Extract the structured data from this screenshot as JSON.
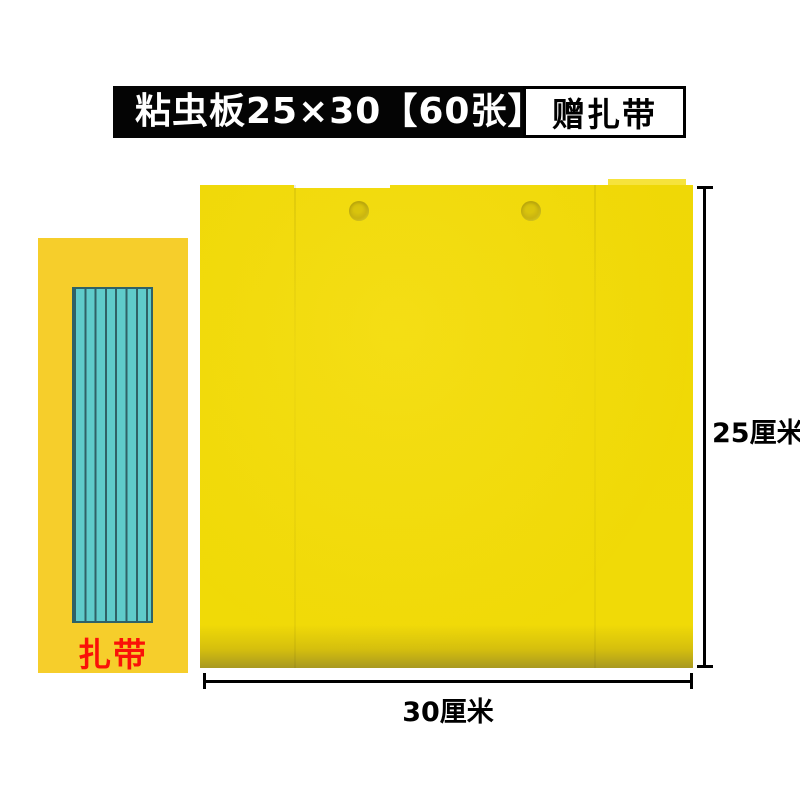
{
  "header": {
    "title": "粘虫板25×30【60张】",
    "badge_label": "赠扎带",
    "bar_color": "#040404",
    "badge_bg": "#ffffff"
  },
  "board": {
    "height_label": "25厘米",
    "width_label": "30厘米",
    "color": "#f3db06",
    "bottom_shadow_color": "#ab9b20",
    "hole_count": 2
  },
  "tie_card": {
    "label": "扎带",
    "label_color": "#fa1108",
    "card_color": "#f6ce2b",
    "ties_color": "#5fcbcb",
    "ties_stripe_color": "#2f6267"
  }
}
